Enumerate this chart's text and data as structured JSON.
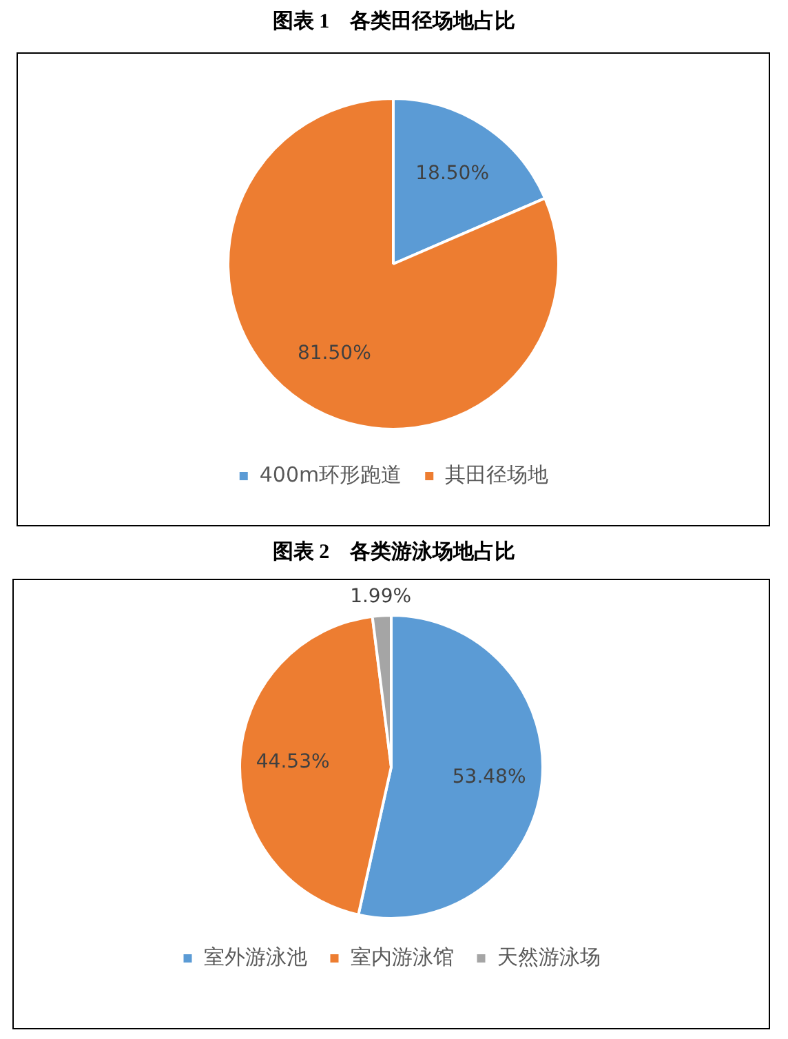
{
  "chart_data": [
    {
      "type": "pie",
      "title": "图表 1　各类田径场地占比",
      "categories": [
        "400m环形跑道",
        "其田径场地"
      ],
      "values": [
        18.5,
        81.5
      ],
      "colors": [
        "#5b9bd5",
        "#ed7d31"
      ],
      "value_labels": [
        "18.50%",
        "81.50%"
      ],
      "legend": "bottom"
    },
    {
      "type": "pie",
      "title": "图表 2　各类游泳场地占比",
      "categories": [
        "室外游泳池",
        "室内游泳馆",
        "天然游泳场"
      ],
      "values": [
        53.48,
        44.53,
        1.99
      ],
      "colors": [
        "#5b9bd5",
        "#ed7d31",
        "#a5a5a5"
      ],
      "value_labels": [
        "53.48%",
        "44.53%",
        "1.99%"
      ],
      "legend": "bottom"
    }
  ]
}
